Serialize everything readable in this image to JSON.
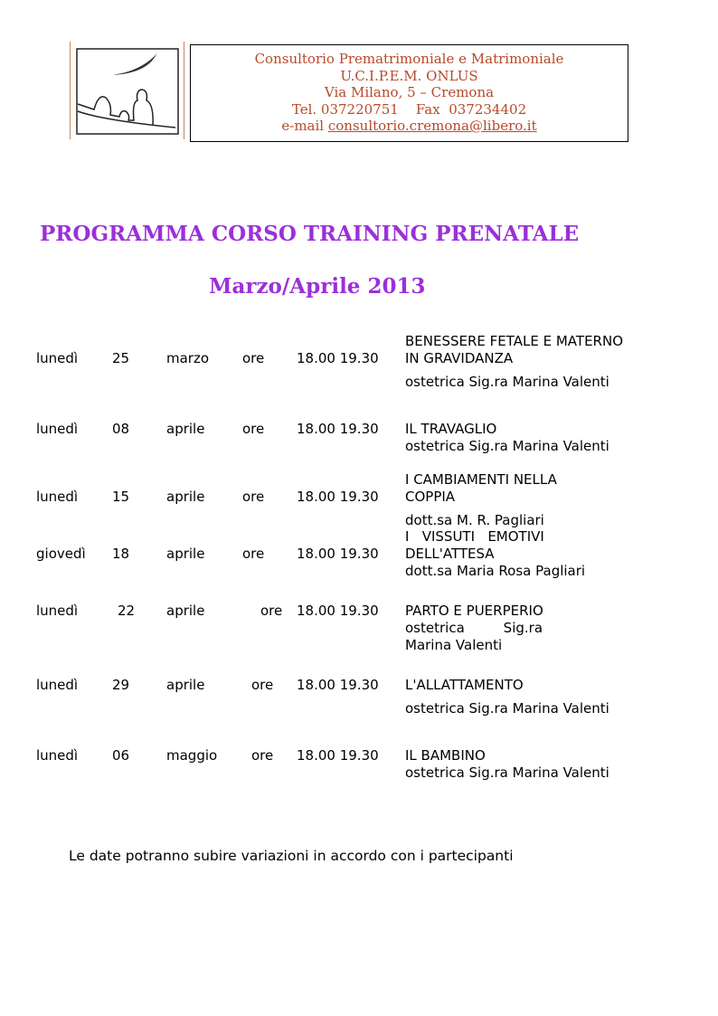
{
  "header": {
    "lines": [
      "Consultorio Prematrimoniale e Matrimoniale",
      "U.C.I.P.E.M. ONLUS",
      "Via Milano, 5 – Cremona",
      "Tel. 037220751    Fax  037234402"
    ],
    "email_label": "e-mail ",
    "email": "consultorio.cremona@libero.it",
    "text_color": "#b8482a"
  },
  "title": "PROGRAMMA CORSO TRAINING PRENATALE",
  "subtitle": "Marzo/Aprile 2013",
  "title_color": "#9b30d9",
  "sessions": [
    {
      "day": "lunedì",
      "date": "25",
      "month": "marzo",
      "ore": "ore",
      "time": "18.00 19.30",
      "desc": [
        "BENESSERE FETALE E MATERNO",
        "IN GRAVIDANZA"
      ],
      "speaker": [
        "ostetrica Sig.ra Marina Valenti"
      ]
    },
    {
      "day": "lunedì",
      "date": "08",
      "month": "aprile",
      "ore": "ore",
      "time": "18.00 19.30",
      "desc": [
        "IL TRAVAGLIO"
      ],
      "speaker": [
        "ostetrica Sig.ra Marina Valenti"
      ]
    },
    {
      "day": "lunedì",
      "date": "15",
      "month": "aprile",
      "ore": "ore",
      "time": "18.00 19.30",
      "desc": [
        "I CAMBIAMENTI NELLA",
        "COPPIA"
      ],
      "speaker": [
        "dott.sa M. R. Pagliari"
      ]
    },
    {
      "day": "giovedì",
      "date": "18",
      "month": "aprile",
      "ore": "ore",
      "time": "18.00 19.30",
      "desc": [
        "I   VISSUTI   EMOTIVI",
        "DELL'ATTESA"
      ],
      "speaker": [
        "dott.sa Maria Rosa Pagliari"
      ]
    },
    {
      "day": "lunedì",
      "date": "22",
      "month": "aprile",
      "ore": "ore",
      "time": "18.00 19.30",
      "desc": [
        "PARTO E PUERPERIO"
      ],
      "speaker": [
        "ostetrica         Sig.ra",
        "Marina Valenti"
      ]
    },
    {
      "day": "lunedì",
      "date": "29",
      "month": "aprile",
      "ore": "ore",
      "time": "18.00 19.30",
      "desc": [
        "L'ALLATTAMENTO"
      ],
      "speaker": [
        "ostetrica Sig.ra Marina Valenti"
      ]
    },
    {
      "day": "lunedì",
      "date": "06",
      "month": "maggio",
      "ore": "ore",
      "time": "18.00 19.30",
      "desc": [
        "IL BAMBINO"
      ],
      "speaker": [
        "ostetrica Sig.ra Marina Valenti"
      ]
    }
  ],
  "footer": "Le date potranno subire variazioni in accordo con i partecipanti"
}
